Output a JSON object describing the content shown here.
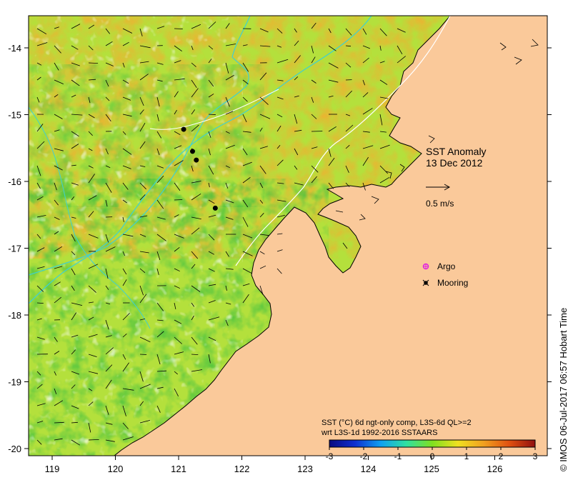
{
  "map": {
    "title": "SST Anomaly",
    "date": "13 Dec 2012",
    "scale_arrow_label": "0.5 m/s",
    "lon_ticks": [
      "119",
      "120",
      "121",
      "122",
      "123",
      "124",
      "125",
      "126"
    ],
    "lat_ticks": [
      "-14",
      "-15",
      "-16",
      "-17",
      "-18",
      "-19",
      "-20"
    ],
    "legend": {
      "argo_label": "Argo",
      "mooring_label": "Mooring"
    },
    "colorbar": {
      "caption_line1": "SST (°C) 6d ngt-only comp, L3S-6d QL>=2",
      "caption_line2": "wrt L3S-1d 1992-2016 SSTAARS",
      "ticks": [
        "-3",
        "-2",
        "-1",
        "0",
        "1",
        "2",
        "3"
      ],
      "stops": [
        "#0a0a80",
        "#1030d0",
        "#10a0f0",
        "#30e0a0",
        "#80e020",
        "#f0e020",
        "#f0a020",
        "#e05010",
        "#901010"
      ]
    },
    "moorings": [
      {
        "lon": 121.08,
        "lat": -15.22
      },
      {
        "lon": 121.22,
        "lat": -15.55
      },
      {
        "lon": 121.28,
        "lat": -15.68
      },
      {
        "lon": 121.58,
        "lat": -16.4
      }
    ],
    "copyright": "© IMOS 06-Jul-2017 06:57 Hobart Time",
    "colors": {
      "land": "#fac99a",
      "ocean_base": "#b4e03c",
      "warm": "#f0b030",
      "cool": "#40c040",
      "isobath": "#40d0d0",
      "contour_white": "#ffffff"
    }
  }
}
